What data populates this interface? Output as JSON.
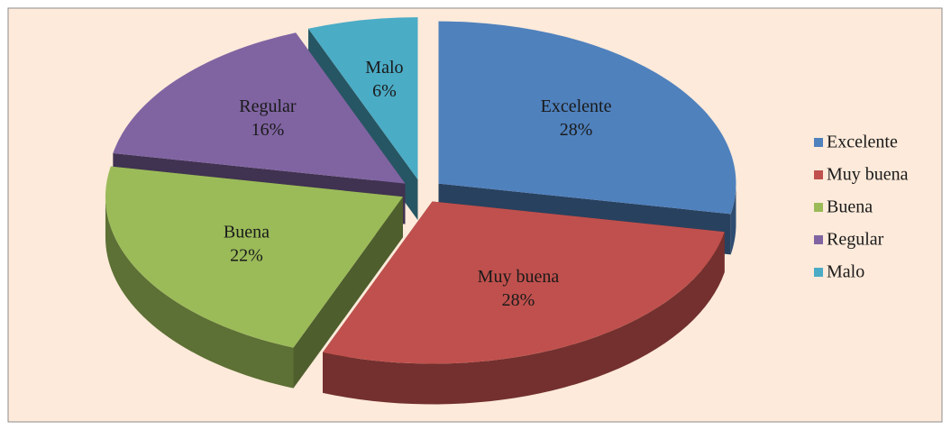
{
  "chart_data": {
    "type": "pie",
    "categories": [
      "Excelente",
      "Muy buena",
      "Buena",
      "Regular",
      "Malo"
    ],
    "values": [
      28,
      28,
      22,
      16,
      6
    ],
    "value_labels": [
      "28%",
      "28%",
      "22%",
      "16%",
      "6%"
    ],
    "colors": [
      "#4f81bd",
      "#c0504d",
      "#9bbb59",
      "#8064a2",
      "#4bacc6"
    ],
    "legend": "right"
  }
}
